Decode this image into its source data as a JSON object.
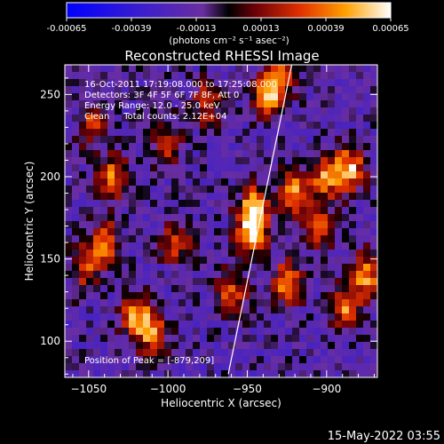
{
  "colorbar": {
    "ticks": [
      "-0.00065",
      "-0.00039",
      "-0.00013",
      "0.00013",
      "0.00039",
      "0.00065"
    ],
    "tick_values": [
      -0.00065,
      -0.00039,
      -0.00013,
      0.00013,
      0.00039,
      0.00065
    ],
    "range": [
      -0.00065,
      0.00065
    ],
    "units": "(photons cm⁻² s⁻¹ asec⁻²)"
  },
  "chart_data": {
    "type": "heatmap",
    "title": "Reconstructed RHESSI Image",
    "xlabel": "Heliocentric X (arcsec)",
    "ylabel": "Heliocentric Y (arcsec)",
    "xlim": [
      -1065,
      -868
    ],
    "ylim": [
      78,
      268
    ],
    "xticks": [
      -1050,
      -1000,
      -950,
      -900
    ],
    "xtick_labels": [
      "−1050",
      "−1000",
      "−950",
      "−900"
    ],
    "yticks": [
      100,
      150,
      200,
      250
    ],
    "ytick_labels": [
      "100",
      "150",
      "200",
      "250"
    ],
    "annotations": [
      "16-Oct-2011 17:19:08.000 to 17:25:08.000",
      "Detectors: 3F 4F 5F 6F 7F 8F, Att 0",
      "Energy Range: 12.0 - 25.0 keV",
      "Clean     Total counts: 2.12E+04"
    ],
    "peak_label": "Position of Peak = [-879,209]",
    "limb_line": [
      [
        -962,
        80
      ],
      [
        -922,
        268
      ]
    ],
    "bright_features": [
      {
        "x": -945,
        "y": 180,
        "intensity": 1.0
      },
      {
        "x": -948,
        "y": 165,
        "intensity": 0.8
      },
      {
        "x": -938,
        "y": 250,
        "intensity": 0.8
      },
      {
        "x": -930,
        "y": 260,
        "intensity": 0.7
      },
      {
        "x": -1035,
        "y": 200,
        "intensity": 0.7
      },
      {
        "x": -1040,
        "y": 160,
        "intensity": 0.7
      },
      {
        "x": -1020,
        "y": 115,
        "intensity": 0.75
      },
      {
        "x": -1010,
        "y": 105,
        "intensity": 0.7
      },
      {
        "x": -1052,
        "y": 145,
        "intensity": 0.6
      },
      {
        "x": -995,
        "y": 160,
        "intensity": 0.55
      },
      {
        "x": -960,
        "y": 130,
        "intensity": 0.6
      },
      {
        "x": -925,
        "y": 135,
        "intensity": 0.75
      },
      {
        "x": -920,
        "y": 190,
        "intensity": 0.8
      },
      {
        "x": -900,
        "y": 200,
        "intensity": 0.8
      },
      {
        "x": -885,
        "y": 205,
        "intensity": 0.85
      },
      {
        "x": -875,
        "y": 140,
        "intensity": 0.8
      },
      {
        "x": -888,
        "y": 120,
        "intensity": 0.7
      },
      {
        "x": -905,
        "y": 170,
        "intensity": 0.6
      },
      {
        "x": -1048,
        "y": 232,
        "intensity": 0.5
      },
      {
        "x": -975,
        "y": 245,
        "intensity": 0.55
      },
      {
        "x": -1000,
        "y": 220,
        "intensity": 0.5
      }
    ]
  },
  "footer": {
    "timestamp": "15-May-2022 03:55"
  }
}
